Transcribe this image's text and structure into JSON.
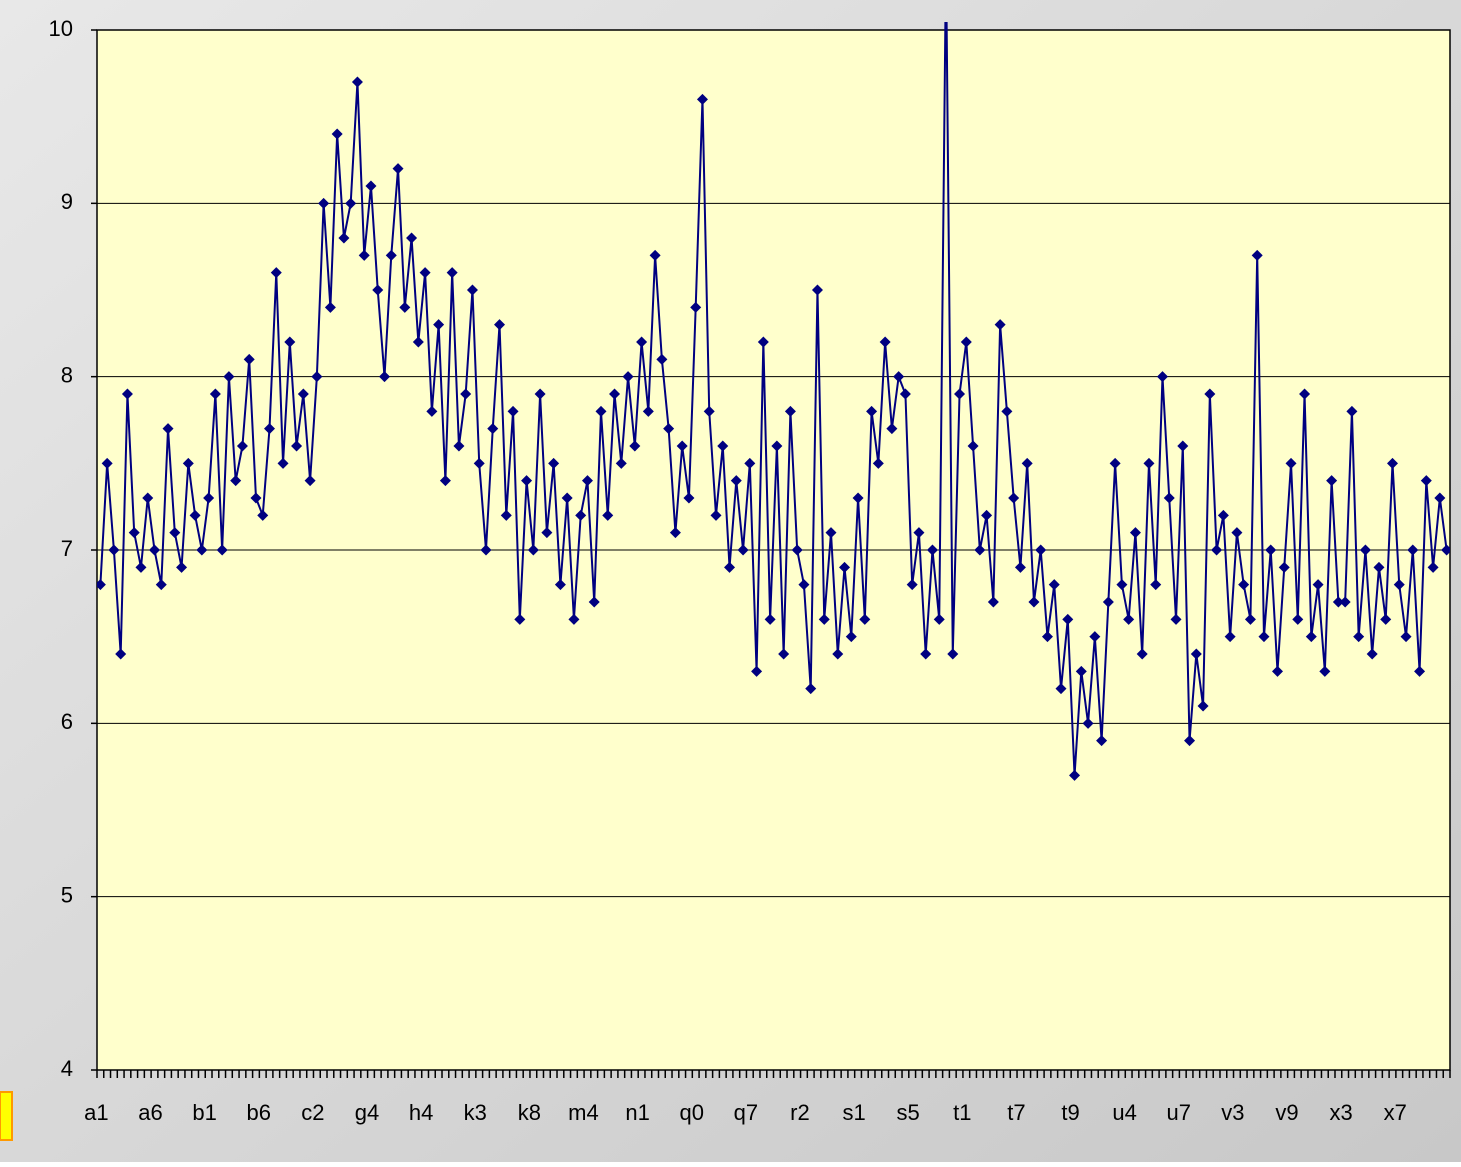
{
  "chart_data": {
    "type": "line",
    "color": "#000080",
    "marker": "diamond",
    "grid": true,
    "ylim": [
      4,
      10
    ],
    "yticks": [
      4,
      5,
      6,
      7,
      8,
      9,
      10
    ],
    "categories": [
      "a1",
      null,
      null,
      null,
      null,
      null,
      null,
      null,
      "a6",
      null,
      null,
      null,
      null,
      null,
      null,
      null,
      "b1",
      null,
      null,
      null,
      null,
      null,
      null,
      null,
      "b6",
      null,
      null,
      null,
      null,
      null,
      null,
      null,
      "c2",
      null,
      null,
      null,
      null,
      null,
      null,
      null,
      "g4",
      null,
      null,
      null,
      null,
      null,
      null,
      null,
      "h4",
      null,
      null,
      null,
      null,
      null,
      null,
      null,
      "k3",
      null,
      null,
      null,
      null,
      null,
      null,
      null,
      "k8",
      null,
      null,
      null,
      null,
      null,
      null,
      null,
      "m4",
      null,
      null,
      null,
      null,
      null,
      null,
      null,
      "n1",
      null,
      null,
      null,
      null,
      null,
      null,
      null,
      "q0",
      null,
      null,
      null,
      null,
      null,
      null,
      null,
      "q7",
      null,
      null,
      null,
      null,
      null,
      null,
      null,
      "r2",
      null,
      null,
      null,
      null,
      null,
      null,
      null,
      "s1",
      null,
      null,
      null,
      null,
      null,
      null,
      null,
      "s5",
      null,
      null,
      null,
      null,
      null,
      null,
      null,
      "t1",
      null,
      null,
      null,
      null,
      null,
      null,
      null,
      "t7",
      null,
      null,
      null,
      null,
      null,
      null,
      null,
      "t9",
      null,
      null,
      null,
      null,
      null,
      null,
      null,
      "u4",
      null,
      null,
      null,
      null,
      null,
      null,
      null,
      "u7",
      null,
      null,
      null,
      null,
      null,
      null,
      null,
      "v3",
      null,
      null,
      null,
      null,
      null,
      null,
      null,
      "v9",
      null,
      null,
      null,
      null,
      null,
      null,
      null,
      "x3",
      null,
      null,
      null,
      null,
      null,
      null,
      null,
      "x7",
      null,
      null,
      null,
      null,
      null,
      null,
      null
    ],
    "values": [
      6.8,
      7.5,
      7.0,
      6.4,
      7.9,
      7.1,
      6.9,
      7.3,
      7.0,
      6.8,
      7.7,
      7.1,
      6.9,
      7.5,
      7.2,
      7.0,
      7.3,
      7.9,
      7.0,
      8.0,
      7.4,
      7.6,
      8.1,
      7.3,
      7.2,
      7.7,
      8.6,
      7.5,
      8.2,
      7.6,
      7.9,
      7.4,
      8.0,
      9.0,
      8.4,
      9.4,
      8.8,
      9.0,
      9.7,
      8.7,
      9.1,
      8.5,
      8.0,
      8.7,
      9.2,
      8.4,
      8.8,
      8.2,
      8.6,
      7.8,
      8.3,
      7.4,
      8.6,
      7.6,
      7.9,
      8.5,
      7.5,
      7.0,
      7.7,
      8.3,
      7.2,
      7.8,
      6.6,
      7.4,
      7.0,
      7.9,
      7.1,
      7.5,
      6.8,
      7.3,
      6.6,
      7.2,
      7.4,
      6.7,
      7.8,
      7.2,
      7.9,
      7.5,
      8.0,
      7.6,
      8.2,
      7.8,
      8.7,
      8.1,
      7.7,
      7.1,
      7.6,
      7.3,
      8.4,
      9.6,
      7.8,
      7.2,
      7.6,
      6.9,
      7.4,
      7.0,
      7.5,
      6.3,
      8.2,
      6.6,
      7.6,
      6.4,
      7.8,
      7.0,
      6.8,
      6.2,
      8.5,
      6.6,
      7.1,
      6.4,
      6.9,
      6.5,
      7.3,
      6.6,
      7.8,
      7.5,
      8.2,
      7.7,
      8.0,
      7.9,
      6.8,
      7.1,
      6.4,
      7.0,
      6.6,
      10.4,
      6.4,
      7.9,
      8.2,
      7.6,
      7.0,
      7.2,
      6.7,
      8.3,
      7.8,
      7.3,
      6.9,
      7.5,
      6.7,
      7.0,
      6.5,
      6.8,
      6.2,
      6.6,
      5.7,
      6.3,
      6.0,
      6.5,
      5.9,
      6.7,
      7.5,
      6.8,
      6.6,
      7.1,
      6.4,
      7.5,
      6.8,
      8.0,
      7.3,
      6.6,
      7.6,
      5.9,
      6.4,
      6.1,
      7.9,
      7.0,
      7.2,
      6.5,
      7.1,
      6.8,
      6.6,
      8.7,
      6.5,
      7.0,
      6.3,
      6.9,
      7.5,
      6.6,
      7.9,
      6.5,
      6.8,
      6.3,
      7.4,
      6.7,
      6.7,
      7.8,
      6.5,
      7.0,
      6.4,
      6.9,
      6.6,
      7.5,
      6.8,
      6.5,
      7.0,
      6.3,
      7.4,
      6.9,
      7.3,
      7.0
    ]
  }
}
